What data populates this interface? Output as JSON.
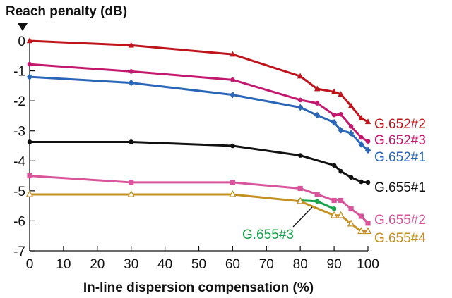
{
  "chart_data": {
    "type": "line",
    "title": "",
    "ylabel": "Reach penalty (dB)",
    "xlabel": "In-line dispersion compensation (%)",
    "xlim": [
      0,
      100
    ],
    "ylim": [
      -7,
      0
    ],
    "x_ticks": [
      "0",
      "10",
      "20",
      "30",
      "40",
      "50",
      "60",
      "70",
      "80",
      "90",
      "100"
    ],
    "y_ticks": [
      "0",
      "-1",
      "-2",
      "-3",
      "-4",
      "-5",
      "-6",
      "-7"
    ],
    "grid": false,
    "series": [
      {
        "name": "G.652#2",
        "color": "#c0141c",
        "marker": "triangle",
        "x": [
          0,
          30,
          60,
          80,
          85,
          90,
          92,
          95,
          98,
          100
        ],
        "y": [
          0,
          -0.15,
          -0.45,
          -1.18,
          -1.6,
          -1.7,
          -1.78,
          -2.17,
          -2.58,
          -2.7
        ]
      },
      {
        "name": "G.652#3",
        "color": "#c2186e",
        "marker": "circle",
        "x": [
          0,
          30,
          60,
          80,
          85,
          90,
          92,
          95,
          98,
          100
        ],
        "y": [
          -0.78,
          -1.02,
          -1.3,
          -1.97,
          -2.08,
          -2.47,
          -2.45,
          -2.85,
          -3.22,
          -3.35
        ]
      },
      {
        "name": "G.652#1",
        "color": "#2a66b8",
        "marker": "diamond",
        "x": [
          0,
          30,
          60,
          80,
          85,
          90,
          92,
          95,
          98,
          100
        ],
        "y": [
          -1.2,
          -1.4,
          -1.8,
          -2.22,
          -2.48,
          -2.72,
          -2.98,
          -3.08,
          -3.45,
          -3.65
        ]
      },
      {
        "name": "G.655#1",
        "color": "#111111",
        "marker": "circle",
        "x": [
          0,
          30,
          60,
          80,
          90,
          92,
          95,
          98,
          100
        ],
        "y": [
          -3.37,
          -3.37,
          -3.5,
          -3.82,
          -4.15,
          -4.35,
          -4.55,
          -4.7,
          -4.72
        ]
      },
      {
        "name": "G.655#2",
        "color": "#d8559c",
        "marker": "square",
        "x": [
          0,
          30,
          60,
          80,
          85,
          90,
          92,
          95,
          98,
          100
        ],
        "y": [
          -4.5,
          -4.72,
          -4.72,
          -4.92,
          -5.12,
          -5.32,
          -5.32,
          -5.6,
          -5.85,
          -6.08
        ]
      },
      {
        "name": "G.655#3",
        "color": "#1aa24a",
        "marker": "circle",
        "x": [
          80,
          85,
          90
        ],
        "y": [
          -5.32,
          -5.35,
          -5.6
        ]
      },
      {
        "name": "G.655#4",
        "color": "#c49020",
        "marker": "triangle-open",
        "x": [
          0,
          30,
          60,
          80,
          90,
          92,
          95,
          98,
          100
        ],
        "y": [
          -5.12,
          -5.12,
          -5.12,
          -5.35,
          -5.82,
          -5.82,
          -6.1,
          -6.35,
          -6.35
        ]
      }
    ]
  }
}
